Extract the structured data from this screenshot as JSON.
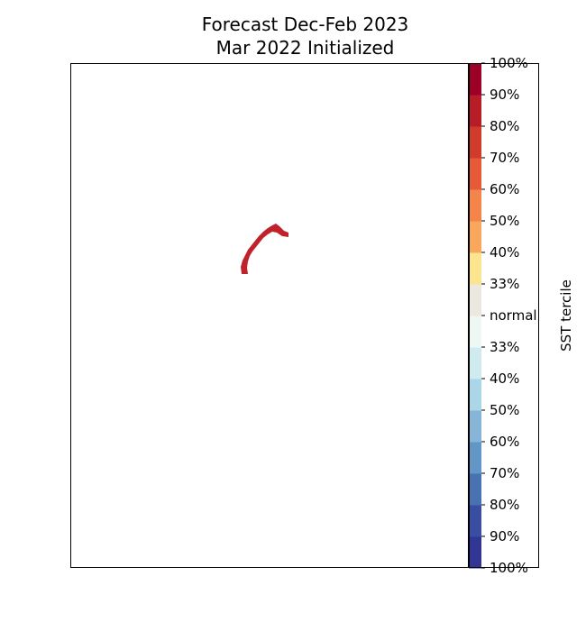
{
  "chart_data": {
    "type": "heatmap",
    "title": "Forecast Dec-Feb 2023",
    "subtitle": "Mar 2022 Initialized",
    "colorbar": {
      "label": "SST tercile",
      "levels": [
        {
          "label": "100%",
          "color": "#313695"
        },
        {
          "label": "90%",
          "color": "#3a4ea1"
        },
        {
          "label": "80%",
          "color": "#4872b2"
        },
        {
          "label": "70%",
          "color": "#6296c6"
        },
        {
          "label": "60%",
          "color": "#86b5d7"
        },
        {
          "label": "50%",
          "color": "#abd6e7"
        },
        {
          "label": "40%",
          "color": "#d0ebf0"
        },
        {
          "label": "33%",
          "color": "#eef7f2"
        },
        {
          "label": "normal",
          "color": "#ede8df"
        },
        {
          "label": "33%",
          "color": "#fde48f"
        },
        {
          "label": "40%",
          "color": "#f9a75d"
        },
        {
          "label": "50%",
          "color": "#f5844b"
        },
        {
          "label": "60%",
          "color": "#e65a37"
        },
        {
          "label": "70%",
          "color": "#d13b2a"
        },
        {
          "label": "80%",
          "color": "#b81c26"
        },
        {
          "label": "90%",
          "color": "#9d0026"
        }
      ],
      "tick_labels": [
        "100%",
        "90%",
        "80%",
        "70%",
        "60%",
        "50%",
        "40%",
        "33%",
        "normal",
        "33%",
        "40%",
        "50%",
        "60%",
        "70%",
        "80%",
        "90%",
        "100%"
      ]
    },
    "regions": [
      {
        "category": "80%",
        "color": "#c0222a"
      }
    ]
  }
}
